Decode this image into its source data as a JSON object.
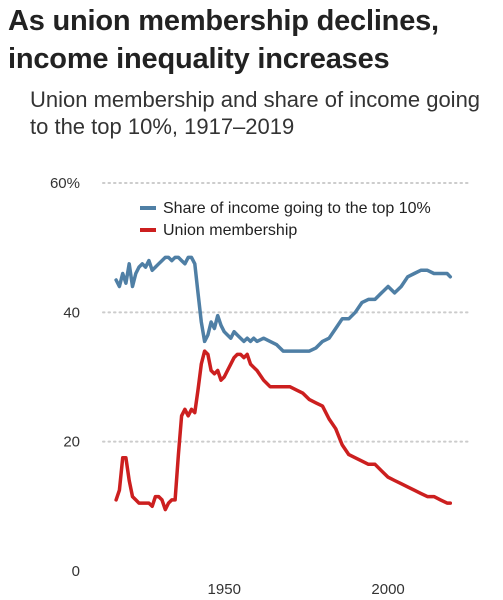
{
  "title": "As union membership declines, income inequality increases",
  "subtitle": "Union membership and share of income going to the top 10%, 1917–2019",
  "colors": {
    "top10": "#4f7fa5",
    "union": "#cc1f1f",
    "grid": "#cccccc"
  },
  "chart_data": {
    "type": "line",
    "xlim": [
      1913,
      2025
    ],
    "ylim": [
      0,
      60
    ],
    "yticks": [
      0,
      20,
      40,
      60
    ],
    "ytick_labels": [
      "0",
      "20",
      "40",
      "60%"
    ],
    "xticks": [
      1950,
      2000
    ],
    "xtick_labels": [
      "1950",
      "2000"
    ],
    "grid": "horizontal dotted",
    "legend_position": "top-right",
    "series": [
      {
        "name": "Share of income going to the top 10%",
        "key": "top10",
        "x": [
          1917,
          1918,
          1919,
          1920,
          1921,
          1922,
          1923,
          1924,
          1925,
          1926,
          1927,
          1928,
          1929,
          1930,
          1931,
          1932,
          1933,
          1934,
          1935,
          1936,
          1937,
          1938,
          1939,
          1940,
          1941,
          1942,
          1943,
          1944,
          1945,
          1946,
          1947,
          1948,
          1949,
          1950,
          1951,
          1952,
          1953,
          1954,
          1955,
          1956,
          1957,
          1958,
          1959,
          1960,
          1962,
          1964,
          1966,
          1968,
          1970,
          1972,
          1974,
          1976,
          1978,
          1980,
          1982,
          1984,
          1986,
          1988,
          1990,
          1992,
          1994,
          1996,
          1998,
          2000,
          2002,
          2004,
          2006,
          2008,
          2010,
          2012,
          2014,
          2016,
          2018,
          2019
        ],
        "y": [
          45.0,
          44.0,
          46.0,
          44.5,
          47.5,
          44.0,
          46.0,
          47.0,
          47.5,
          47.0,
          48.0,
          46.5,
          47.0,
          47.5,
          48.0,
          48.5,
          48.5,
          48.0,
          48.5,
          48.5,
          48.0,
          47.5,
          48.5,
          48.5,
          47.5,
          43.0,
          38.5,
          35.5,
          36.5,
          38.5,
          37.5,
          39.5,
          38.0,
          37.0,
          36.5,
          36.0,
          37.0,
          36.5,
          36.0,
          35.5,
          36.0,
          35.5,
          36.0,
          35.5,
          36.0,
          35.5,
          35.0,
          34.0,
          34.0,
          34.0,
          34.0,
          34.0,
          34.5,
          35.5,
          36.0,
          37.5,
          39.0,
          39.0,
          40.0,
          41.5,
          42.0,
          42.0,
          43.0,
          44.0,
          43.0,
          44.0,
          45.5,
          46.0,
          46.5,
          46.5,
          46.0,
          46.0,
          46.0,
          45.5
        ]
      },
      {
        "name": "Union membership",
        "key": "union",
        "x": [
          1917,
          1918,
          1919,
          1920,
          1921,
          1922,
          1923,
          1924,
          1925,
          1926,
          1927,
          1928,
          1929,
          1930,
          1931,
          1932,
          1933,
          1934,
          1935,
          1936,
          1937,
          1938,
          1939,
          1940,
          1941,
          1942,
          1943,
          1944,
          1945,
          1946,
          1947,
          1948,
          1949,
          1950,
          1951,
          1952,
          1953,
          1954,
          1955,
          1956,
          1957,
          1958,
          1959,
          1960,
          1962,
          1964,
          1966,
          1968,
          1970,
          1972,
          1974,
          1976,
          1978,
          1980,
          1982,
          1984,
          1986,
          1988,
          1990,
          1992,
          1994,
          1996,
          1998,
          2000,
          2002,
          2004,
          2006,
          2008,
          2010,
          2012,
          2014,
          2016,
          2018,
          2019
        ],
        "y": [
          11.0,
          12.5,
          17.5,
          17.5,
          14.0,
          11.5,
          11.0,
          10.5,
          10.5,
          10.5,
          10.5,
          10.0,
          11.5,
          11.5,
          11.0,
          9.5,
          10.5,
          11.0,
          11.0,
          18.0,
          24.0,
          25.0,
          24.0,
          25.0,
          24.5,
          28.0,
          32.0,
          34.0,
          33.5,
          31.0,
          30.5,
          31.0,
          29.5,
          30.0,
          31.0,
          32.0,
          33.0,
          33.5,
          33.5,
          33.0,
          33.5,
          32.0,
          31.5,
          31.0,
          29.5,
          28.5,
          28.5,
          28.5,
          28.5,
          28.0,
          27.5,
          26.5,
          26.0,
          25.5,
          23.5,
          22.0,
          19.5,
          18.0,
          17.5,
          17.0,
          16.5,
          16.5,
          15.5,
          14.5,
          14.0,
          13.5,
          13.0,
          12.5,
          12.0,
          11.5,
          11.5,
          11.0,
          10.5,
          10.5
        ]
      }
    ]
  }
}
